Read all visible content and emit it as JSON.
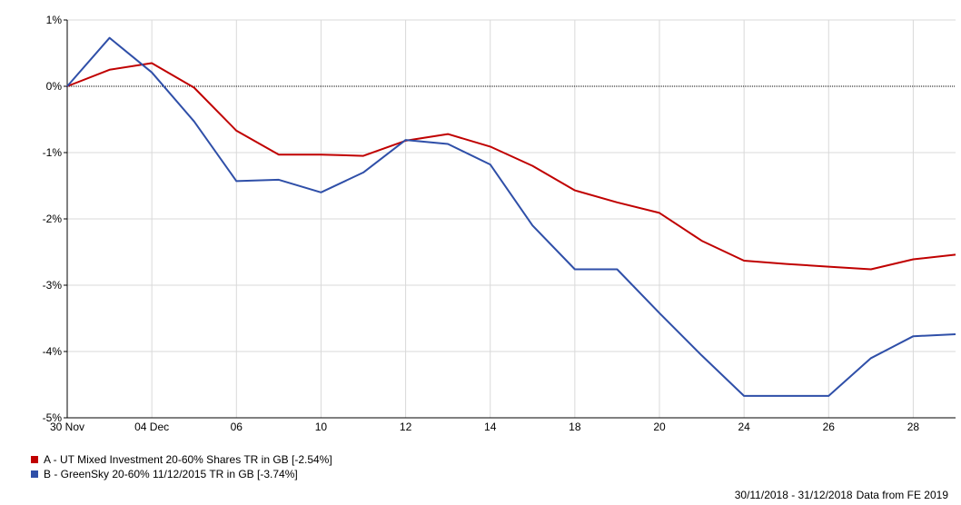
{
  "chart_data": {
    "type": "line",
    "title": "",
    "xlabel": "",
    "ylabel": "",
    "x_labels": [
      "30 Nov",
      "04 Dec",
      "06",
      "10",
      "12",
      "14",
      "18",
      "20",
      "24",
      "26",
      "28"
    ],
    "y_ticks": [
      "1%",
      "0%",
      "-1%",
      "-2%",
      "-3%",
      "-4%",
      "-5%"
    ],
    "ylim": [
      -5,
      1
    ],
    "grid": true,
    "legend_position": "bottom-left",
    "series": [
      {
        "name": "A - UT Mixed Investment 20-60% Shares TR in GB [-2.54%]",
        "color": "#c00000",
        "values": [
          0,
          0.25,
          0.35,
          -0.02,
          -0.67,
          -1.03,
          -1.03,
          -1.05,
          -0.82,
          -0.72,
          -0.91,
          -1.2,
          -1.57,
          -1.75,
          -1.91,
          -2.33,
          -2.63,
          -2.68,
          -2.72,
          -2.76,
          -2.61,
          -2.54
        ]
      },
      {
        "name": "B - GreenSky 20-60% 11/12/2015 TR in GB [-3.74%]",
        "color": "#2f4fa8",
        "values": [
          0,
          0.73,
          0.21,
          -0.53,
          -1.43,
          -1.41,
          -1.6,
          -1.3,
          -0.81,
          -0.87,
          -1.18,
          -2.1,
          -2.76,
          -2.76,
          -3.42,
          -4.06,
          -4.67,
          -4.67,
          -4.67,
          -4.1,
          -3.77,
          -3.74
        ]
      }
    ]
  },
  "footer": {
    "range": "30/11/2018 - 31/12/2018",
    "source": "Data from FE 2019"
  }
}
